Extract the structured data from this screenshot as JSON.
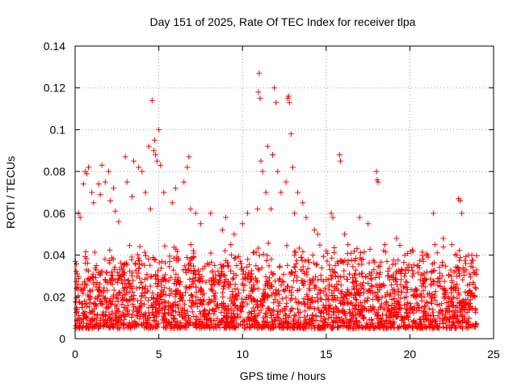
{
  "chart_data": {
    "type": "scatter",
    "title": "Day 151 of 2025, Rate Of TEC Index for receiver tlpa",
    "xlabel": "GPS time / hours",
    "ylabel": "ROTI / TECUs",
    "xlim": [
      0,
      25
    ],
    "ylim": [
      0,
      0.14
    ],
    "xticks": [
      "0",
      "5",
      "10",
      "15",
      "20",
      "25"
    ],
    "yticks": [
      "0",
      "0.02",
      "0.04",
      "0.06",
      "0.08",
      "0.1",
      "0.12",
      "0.14"
    ],
    "grid": true,
    "marker": "plus",
    "color": "#ff0000",
    "background_x_range": [
      0,
      24
    ],
    "background_y_range": [
      0.005,
      0.035
    ],
    "series": [
      {
        "x": [
          0.2,
          0.3,
          0.5,
          0.6,
          0.7,
          0.8,
          1.0,
          1.1,
          1.4,
          1.5,
          1.6,
          1.8,
          2.0,
          2.1,
          2.3,
          2.4,
          2.6,
          3.0,
          3.1,
          3.4,
          3.5,
          3.8,
          4.0,
          4.2,
          4.4,
          4.5,
          4.6,
          4.7,
          4.75,
          4.8,
          4.9,
          5.0,
          5.1,
          5.3,
          5.8,
          6.0,
          6.5,
          6.7,
          6.8,
          6.9,
          7.2,
          7.5,
          8.1,
          8.8,
          9.0,
          9.3,
          9.5,
          10.0,
          10.3,
          10.9,
          10.95,
          11.0,
          11.05,
          11.1,
          11.2,
          11.4,
          11.5,
          11.7,
          11.8,
          11.9,
          12.0,
          12.1,
          12.3,
          12.6,
          12.7,
          12.75,
          12.8,
          12.9,
          13.0,
          13.1,
          13.3,
          13.6,
          13.8,
          14.3,
          14.5,
          15.0,
          15.3,
          15.4,
          15.8,
          15.85,
          16.1,
          16.3,
          17.0,
          17.5,
          18.0,
          18.05,
          18.1,
          18.5,
          19.2,
          19.7,
          20.5,
          21.0,
          21.4,
          21.5,
          22.0,
          22.5,
          22.9,
          23.0,
          23.1,
          23.5,
          23.7
        ],
        "y": [
          0.06,
          0.058,
          0.074,
          0.08,
          0.079,
          0.082,
          0.07,
          0.065,
          0.074,
          0.069,
          0.083,
          0.075,
          0.08,
          0.066,
          0.072,
          0.061,
          0.056,
          0.087,
          0.075,
          0.068,
          0.085,
          0.082,
          0.08,
          0.07,
          0.092,
          0.062,
          0.114,
          0.09,
          0.095,
          0.088,
          0.085,
          0.1,
          0.083,
          0.07,
          0.065,
          0.072,
          0.075,
          0.082,
          0.087,
          0.062,
          0.06,
          0.055,
          0.06,
          0.052,
          0.058,
          0.045,
          0.05,
          0.055,
          0.06,
          0.062,
          0.118,
          0.127,
          0.115,
          0.085,
          0.08,
          0.07,
          0.092,
          0.062,
          0.088,
          0.12,
          0.113,
          0.08,
          0.07,
          0.075,
          0.115,
          0.116,
          0.113,
          0.098,
          0.082,
          0.06,
          0.07,
          0.065,
          0.058,
          0.052,
          0.05,
          0.042,
          0.06,
          0.058,
          0.088,
          0.085,
          0.05,
          0.045,
          0.058,
          0.055,
          0.08,
          0.076,
          0.075,
          0.045,
          0.048,
          0.04,
          0.035,
          0.04,
          0.06,
          0.045,
          0.048,
          0.045,
          0.067,
          0.066,
          0.06,
          0.04,
          0.04
        ]
      }
    ]
  }
}
